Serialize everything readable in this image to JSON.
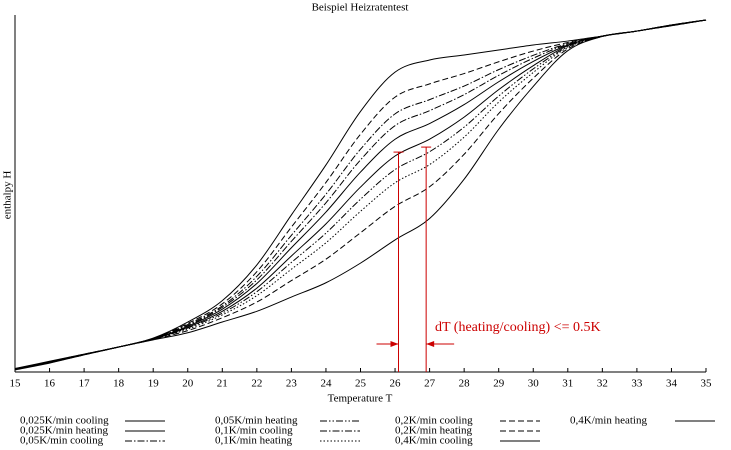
{
  "chart_data": {
    "type": "line",
    "title": "Beispiel Heizratentest",
    "x_label": "Temperature T",
    "y_label": "enthalpy H",
    "x": [
      15,
      16,
      17,
      18,
      19,
      20,
      21,
      22,
      23,
      24,
      25,
      26,
      27,
      28,
      29,
      30,
      31,
      32,
      33,
      34,
      35
    ],
    "xlim": [
      15,
      35
    ],
    "xticks": [
      15,
      16,
      17,
      18,
      19,
      20,
      21,
      22,
      23,
      24,
      25,
      26,
      27,
      28,
      29,
      30,
      31,
      32,
      33,
      34,
      35
    ],
    "ylim": [
      0,
      100
    ],
    "grid": false,
    "legend": "below",
    "series": [
      {
        "name": "0,025K/min cooling",
        "color": "#000000",
        "style": "solid",
        "values": [
          0.8,
          2.7,
          4.9,
          7,
          9.3,
          12.8,
          17.6,
          24.8,
          34.8,
          44.8,
          56,
          65.2,
          69.6,
          74.9,
          81.3,
          87.0,
          91.6,
          94.1,
          95.5,
          97.1,
          98.6
        ]
      },
      {
        "name": "0,025K/min heating",
        "color": "#000000",
        "style": "solid",
        "values": [
          0.8,
          2.8,
          4.9,
          7,
          9.3,
          12.5,
          17,
          23.5,
          32.5,
          41.5,
          51.8,
          60.5,
          65.2,
          71.4,
          79.1,
          85.8,
          91.4,
          94.1,
          95.5,
          97.1,
          98.6
        ]
      },
      {
        "name": "0,05K/min cooling",
        "color": "#000000",
        "style": "dashdot",
        "values": [
          0.7,
          2.7,
          4.9,
          7,
          9.3,
          13.0,
          18.1,
          25.8,
          36.6,
          47.4,
          59.4,
          69.0,
          73.2,
          77.7,
          83.1,
          87.9,
          91.8,
          94.1,
          95.5,
          97.2,
          98.6
        ]
      },
      {
        "name": "0,05K/min heating",
        "color": "#000000",
        "style": "dashdotdot",
        "values": [
          0.8,
          2.8,
          4.9,
          7,
          9.2,
          12.3,
          16.5,
          22.5,
          30.7,
          38.9,
          48.4,
          56.7,
          61.7,
          68.6,
          77.3,
          84.9,
          91.1,
          94.0,
          95.5,
          97.1,
          98.6
        ]
      },
      {
        "name": "0,1K/min cooling",
        "color": "#000000",
        "style": "dashdot",
        "values": [
          0.7,
          2.6,
          4.9,
          7,
          9.4,
          13.3,
          18.5,
          26.8,
          38.3,
          49.8,
          62.4,
          72.3,
          76.3,
          80.1,
          84.7,
          88.7,
          92.0,
          94.1,
          95.5,
          97.2,
          98.6
        ]
      },
      {
        "name": "0,1K/min heating",
        "color": "#000000",
        "style": "dotted",
        "values": [
          0.9,
          2.8,
          4.9,
          7,
          9.2,
          12.0,
          16.0,
          21.4,
          28.8,
          36.2,
          45,
          53.0,
          58.1,
          65.8,
          75.6,
          83.9,
          90.9,
          94.0,
          95.5,
          97.1,
          98.6
        ]
      },
      {
        "name": "0,2K/min cooling",
        "color": "#000000",
        "style": "dashed",
        "values": [
          0.7,
          2.6,
          4.8,
          7,
          9.4,
          13.6,
          19.1,
          28.1,
          40.6,
          53.1,
          66.6,
          77,
          80.7,
          83.6,
          86.9,
          89.9,
          92.3,
          94.1,
          95.5,
          97.2,
          98.6
        ]
      },
      {
        "name": "0,2K/min heating",
        "color": "#000000",
        "style": "dashed",
        "values": [
          0.9,
          2.9,
          5,
          7,
          9.1,
          11.6,
          15.2,
          19.6,
          25.6,
          31.6,
          39,
          46.4,
          51.9,
          61.0,
          72.4,
          82.3,
          90.5,
          94.0,
          95.5,
          97.0,
          98.6
        ]
      },
      {
        "name": "0,4K/min cooling",
        "color": "#000000",
        "style": "solid",
        "values": [
          0.6,
          2.5,
          4.8,
          7,
          9.5,
          14,
          20,
          30,
          44,
          58,
          73,
          84,
          87.4,
          88.8,
          90.2,
          91.6,
          92.7,
          94.1,
          95.5,
          97.2,
          98.6
        ]
      },
      {
        "name": "0,4K/min heating",
        "color": "#000000",
        "style": "solid",
        "values": [
          1,
          3,
          5,
          7,
          9,
          11,
          14,
          17,
          21,
          25,
          30.5,
          37,
          43,
          54,
          68,
          80,
          90,
          94,
          95.5,
          97,
          98.6
        ]
      }
    ],
    "annotation": {
      "text": "dT (heating/cooling) <= 0.5K",
      "color": "#cc0000",
      "markers": [
        {
          "x": 26.1,
          "y": 61.6
        },
        {
          "x": 26.9,
          "y": 63
        }
      ]
    }
  }
}
